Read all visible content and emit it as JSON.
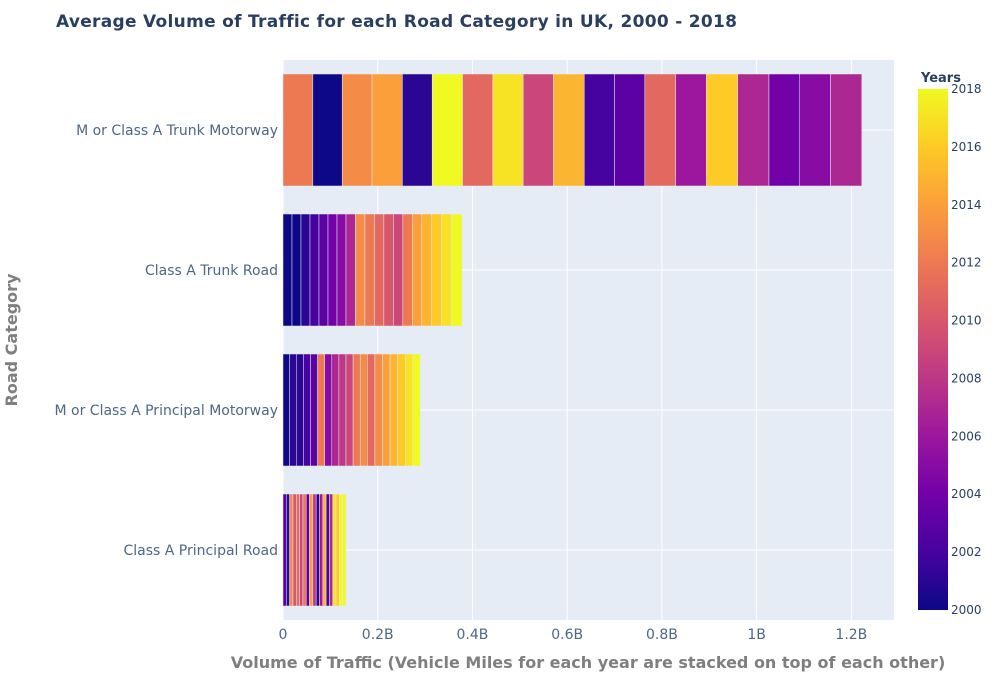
{
  "chart_data": {
    "type": "bar",
    "orientation": "horizontal",
    "stacked": true,
    "title": "Average Volume of Traffic for each Road Category in UK, 2000 - 2018",
    "xlabel": "Volume of Traffic (Vehicle Miles for each year are stacked on top of each other)",
    "ylabel": "Road Category",
    "xlim": [
      0,
      1290000000
    ],
    "x_ticks": [
      0,
      200000000,
      400000000,
      600000000,
      800000000,
      1000000000,
      1200000000
    ],
    "x_tick_labels": [
      "0",
      "0.2B",
      "0.4B",
      "0.6B",
      "0.8B",
      "1B",
      "1.2B"
    ],
    "grid": true,
    "categories": [
      "Class A Principal Road",
      "M or Class A Principal Motorway",
      "Class A Trunk Road",
      "M or Class A Trunk Motorway"
    ],
    "stack_order_note": "",
    "colorscale": "plasma",
    "colorbar": {
      "title": "Years",
      "min": 2000,
      "max": 2018,
      "ticks": [
        2000,
        2002,
        2004,
        2006,
        2008,
        2010,
        2012,
        2014,
        2016,
        2018
      ]
    },
    "segments": [
      {
        "category": "M or Class A Trunk Motorway",
        "years": [
          2012,
          2000,
          2013,
          2014,
          2001,
          2018,
          2011,
          2017,
          2009,
          2015,
          2002,
          2003,
          2011,
          2006,
          2016,
          2007,
          2004,
          2005,
          2007
        ],
        "values": [
          63000000,
          62000000,
          63000000,
          64000000,
          63000000,
          64000000,
          64000000,
          64000000,
          64000000,
          65000000,
          64000000,
          64000000,
          65000000,
          65000000,
          66000000,
          66000000,
          65000000,
          65000000,
          66000000
        ]
      },
      {
        "category": "Class A Trunk Road",
        "years": [
          2000,
          2000,
          2001,
          2002,
          2003,
          2004,
          2005,
          2007,
          2013,
          2012,
          2011,
          2010,
          2009,
          2012,
          2014,
          2015,
          2016,
          2017,
          2018
        ],
        "values": [
          19000000,
          19000000,
          19000000,
          19000000,
          19000000,
          19000000,
          19000000,
          20000000,
          20000000,
          20000000,
          20000000,
          20000000,
          20000000,
          20000000,
          20000000,
          21000000,
          21000000,
          21000000,
          22000000
        ]
      },
      {
        "category": "M or Class A Principal Motorway",
        "years": [
          2000,
          2001,
          2001,
          2002,
          2003,
          2012,
          2005,
          2007,
          2008,
          2009,
          2012,
          2013,
          2011,
          2013,
          2014,
          2015,
          2016,
          2017,
          2018
        ],
        "values": [
          14000000,
          14000000,
          15000000,
          15000000,
          15000000,
          15000000,
          15000000,
          15000000,
          15000000,
          15000000,
          15000000,
          15000000,
          16000000,
          16000000,
          16000000,
          16000000,
          16000000,
          16000000,
          16000000
        ]
      },
      {
        "category": "Class A Principal Road",
        "years": [
          2003,
          2001,
          2013,
          2010,
          2011,
          2009,
          2012,
          2003,
          2014,
          2008,
          2001,
          2006,
          2015,
          2002,
          2007,
          2017,
          2016,
          2018,
          2018
        ],
        "values": [
          7000000,
          7000000,
          7000000,
          7000000,
          7000000,
          7000000,
          7000000,
          7000000,
          7000000,
          7000000,
          7000000,
          7000000,
          7000000,
          7000000,
          7000000,
          7000000,
          7000000,
          7000000,
          7000000
        ]
      }
    ]
  }
}
